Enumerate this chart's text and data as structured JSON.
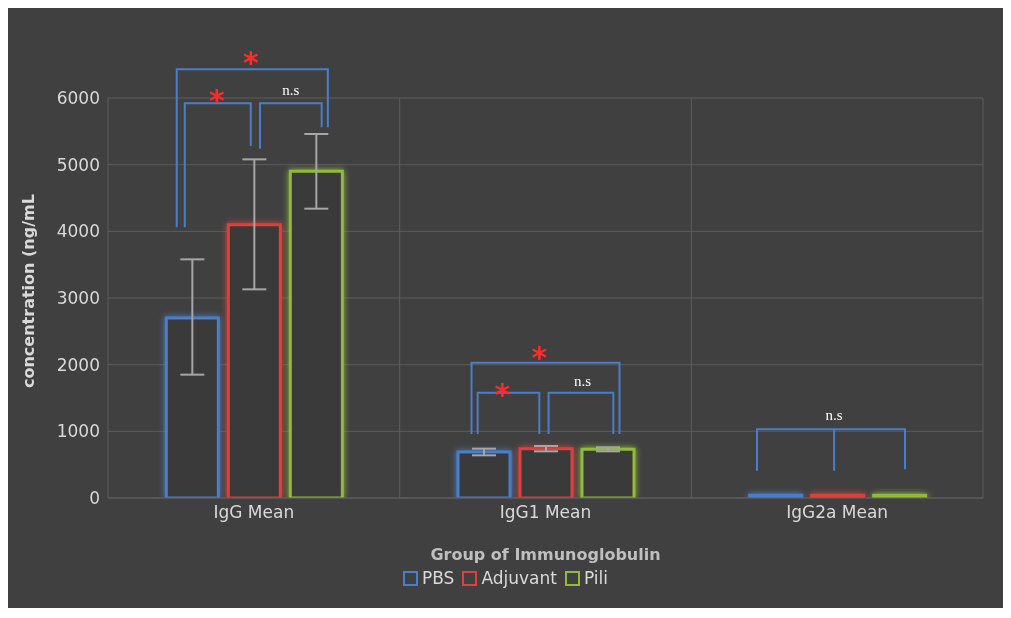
{
  "chart_data": {
    "type": "bar",
    "xlabel": "Group of Immunoglobulin",
    "ylabel": "concentration (ng/mL",
    "categories": [
      "IgG Mean",
      "IgG1 Mean",
      "IgG2a Mean"
    ],
    "series": [
      {
        "name": "PBS",
        "color": "#4a7ec8",
        "values": [
          2700,
          690,
          40
        ],
        "errors": [
          [
            1850,
            3580
          ],
          [
            640,
            740
          ],
          null
        ]
      },
      {
        "name": "Adjuvant",
        "color": "#d9423e",
        "values": [
          4100,
          740,
          40
        ],
        "errors": [
          [
            3130,
            5080
          ],
          [
            700,
            780
          ],
          null
        ]
      },
      {
        "name": "Pili",
        "color": "#8fba3c",
        "values": [
          4900,
          730,
          40
        ],
        "errors": [
          [
            4340,
            5460
          ],
          [
            700,
            760
          ],
          null
        ]
      }
    ],
    "ylim": [
      0,
      6000
    ],
    "yticks": [
      0,
      1000,
      2000,
      3000,
      4000,
      5000,
      6000
    ],
    "grid": true,
    "legend": "bottom",
    "annotations": [
      "*",
      "n.s",
      "*",
      "*",
      "n.s",
      "*",
      "n.s"
    ]
  }
}
